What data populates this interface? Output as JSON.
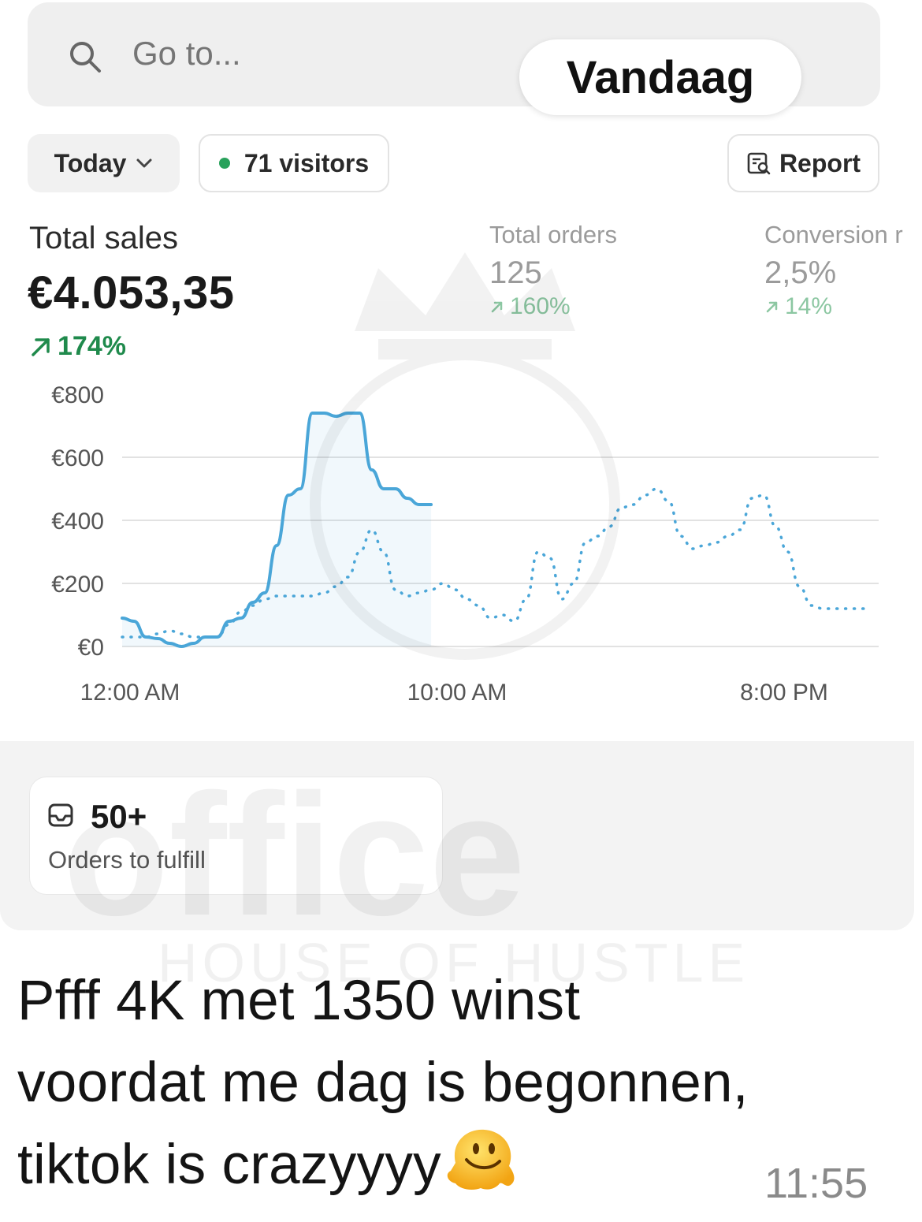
{
  "search": {
    "placeholder": "Go to..."
  },
  "date_chip": "Vandaag",
  "filters": {
    "period_label": "Today",
    "visitors_label": "71 visitors",
    "report_label": "Report"
  },
  "metrics": {
    "total_sales": {
      "label": "Total sales",
      "value": "€4.053,35",
      "change": "174%"
    },
    "total_orders": {
      "label": "Total orders",
      "value": "125",
      "change": "160%"
    },
    "conversion": {
      "label": "Conversion r",
      "value": "2,5%",
      "change": "14%"
    }
  },
  "chart_data": {
    "type": "line",
    "y_ticks": [
      "€800",
      "€600",
      "€400",
      "€200",
      "€0"
    ],
    "x_ticks": [
      "12:00 AM",
      "10:00 AM",
      "8:00 PM"
    ],
    "ylim": [
      0,
      800
    ],
    "grid": true,
    "series": [
      {
        "style": "solid",
        "color": "#4aa6d8",
        "x": [
          0,
          1,
          2,
          3,
          4,
          5,
          6,
          7,
          8,
          9,
          10,
          11,
          12,
          13,
          14,
          15,
          16,
          17,
          18,
          19,
          20,
          21,
          22,
          23,
          24,
          25,
          26
        ],
        "y": [
          90,
          80,
          30,
          25,
          10,
          0,
          10,
          30,
          30,
          80,
          90,
          140,
          170,
          320,
          480,
          500,
          740,
          740,
          730,
          740,
          740,
          560,
          500,
          500,
          470,
          450,
          450
        ]
      },
      {
        "style": "dotted",
        "color": "#4aa6d8",
        "x": [
          0,
          1,
          2,
          3,
          4,
          5,
          6,
          7,
          8,
          9,
          10,
          11,
          12,
          13,
          14,
          15,
          16,
          17,
          18,
          19,
          20,
          21,
          22,
          23,
          24,
          25,
          26,
          27,
          28,
          29,
          30,
          31,
          32,
          33,
          34,
          35,
          36,
          37,
          38,
          39,
          40,
          41,
          42,
          43,
          44,
          45,
          46,
          47,
          48,
          49,
          50,
          51,
          52,
          53,
          54,
          55,
          56,
          57,
          58,
          59,
          60,
          61,
          62,
          63
        ],
        "y": [
          30,
          30,
          30,
          40,
          50,
          40,
          30,
          30,
          30,
          70,
          110,
          130,
          150,
          160,
          160,
          160,
          160,
          170,
          190,
          220,
          300,
          370,
          300,
          180,
          160,
          170,
          180,
          200,
          180,
          150,
          130,
          90,
          100,
          80,
          150,
          300,
          280,
          150,
          200,
          330,
          350,
          380,
          440,
          450,
          480,
          500,
          460,
          350,
          310,
          320,
          330,
          350,
          370,
          470,
          480,
          380,
          300,
          190,
          130,
          120,
          120,
          120,
          120,
          120
        ]
      }
    ]
  },
  "fulfill": {
    "count": "50+",
    "label": "Orders to fulfill"
  },
  "message": {
    "line1": "Pfff 4K met 1350 winst",
    "line2": "voordat me dag is begonnen,",
    "line3": "tiktok is crazyyyy",
    "emoji_icon": "melting-face-icon",
    "time": "11:55"
  },
  "watermark": {
    "brand": "office",
    "tagline": "HOUSE OF HUSTLE"
  }
}
